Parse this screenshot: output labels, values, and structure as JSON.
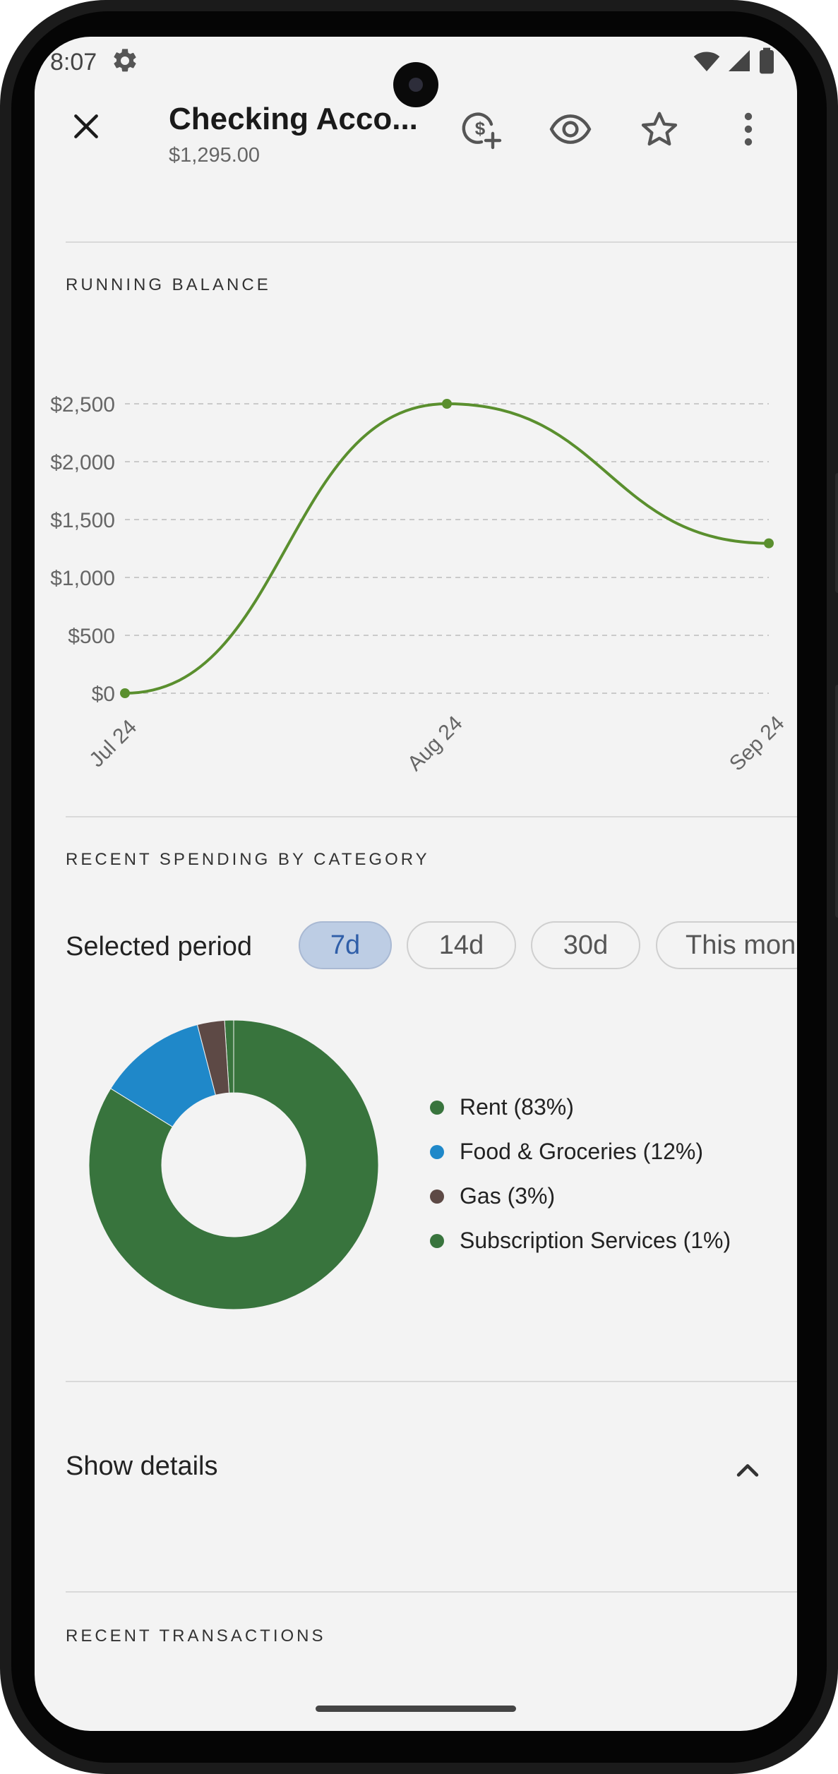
{
  "status_bar": {
    "time": "8:07",
    "icons": [
      "gear-icon",
      "wifi-icon",
      "signal-icon",
      "battery-icon"
    ]
  },
  "header": {
    "title": "Checking Acco...",
    "balance": "$1,295.00",
    "actions": [
      "add-money-icon",
      "eye-icon",
      "star-icon",
      "more-vert-icon"
    ]
  },
  "running_balance": {
    "label": "RUNNING BALANCE"
  },
  "chart_data": {
    "type": "line",
    "x": [
      "Jul 24",
      "Aug 24",
      "Sep 24"
    ],
    "series": [
      {
        "values": [
          0,
          2500,
          1295
        ]
      }
    ],
    "y_ticks": [
      "$0",
      "$500",
      "$1,000",
      "$1,500",
      "$2,000",
      "$2,500"
    ],
    "ylim": [
      0,
      2500
    ],
    "grid": true,
    "line_color": "#5a8f2e"
  },
  "spending": {
    "label": "RECENT SPENDING BY CATEGORY",
    "period_label": "Selected period",
    "chips": [
      "7d",
      "14d",
      "30d",
      "This mon"
    ],
    "selected_chip": "7d",
    "categories": [
      {
        "label": "Rent (83%)",
        "percent": 83,
        "color": "#38743d"
      },
      {
        "label": "Food & Groceries (12%)",
        "percent": 12,
        "color": "#1f88c9"
      },
      {
        "label": "Gas (3%)",
        "percent": 3,
        "color": "#5d4945"
      },
      {
        "label": "Subscription Services (1%)",
        "percent": 1,
        "color": "#38743d"
      }
    ]
  },
  "details": {
    "label": "Show details"
  },
  "transactions": {
    "label": "RECENT TRANSACTIONS"
  }
}
